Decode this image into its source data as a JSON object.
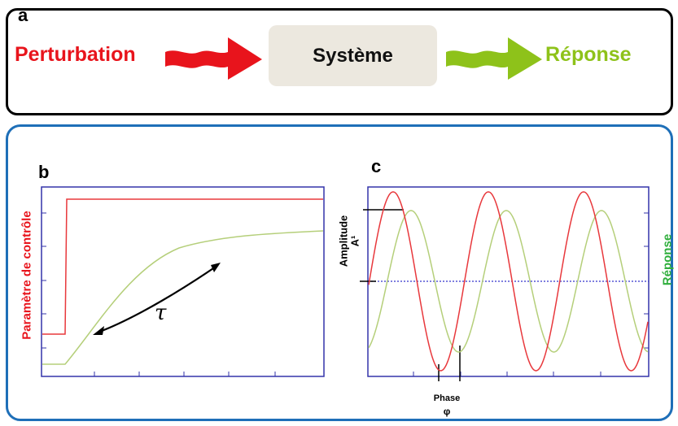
{
  "panel_a": {
    "letter": "a",
    "perturbation": "Perturbation",
    "system": "Système",
    "response": "Réponse"
  },
  "panel_b": {
    "letter": "b",
    "ylabel": "Paramètre de contrôle",
    "tau": "τ"
  },
  "panel_c": {
    "letter": "c",
    "amplitude_label": "Amplitude",
    "amplitude_symbol": "A¹",
    "phase_label": "Phase",
    "phase_symbol": "φ",
    "right_label": "Réponse"
  },
  "colors": {
    "perturbation": "#e8141c",
    "response": "#8ec21a",
    "response_dark": "#2fae3c",
    "frame": "#1e6fb8",
    "axis": "#3333aa",
    "curve_red": "#e8383c",
    "curve_green": "#b5cf7a"
  }
}
